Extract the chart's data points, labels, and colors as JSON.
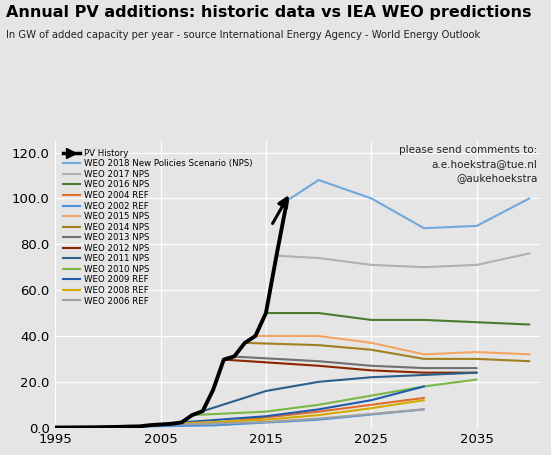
{
  "title": "Annual PV additions: historic data vs IEA WEO predictions",
  "subtitle": "In GW of added capacity per year - source International Energy Agency - World Energy Outlook",
  "comment": "please send comments to:\na.e.hoekstra@tue.nl\n@aukehoekstra",
  "xlim": [
    1995,
    2041
  ],
  "ylim": [
    0,
    125
  ],
  "yticks": [
    0.0,
    20.0,
    40.0,
    60.0,
    80.0,
    100.0,
    120.0
  ],
  "xticks": [
    1995,
    2005,
    2015,
    2025,
    2035
  ],
  "background_color": "#e5e5e5",
  "series": {
    "PV History": {
      "color": "#000000",
      "linewidth": 2.8,
      "years": [
        1995,
        1996,
        1997,
        1998,
        1999,
        2000,
        2001,
        2002,
        2003,
        2004,
        2005,
        2006,
        2007,
        2008,
        2009,
        2010,
        2011,
        2012,
        2013,
        2014,
        2015,
        2016,
        2017
      ],
      "values": [
        0.08,
        0.09,
        0.13,
        0.16,
        0.2,
        0.28,
        0.34,
        0.5,
        0.57,
        1.1,
        1.4,
        1.7,
        2.3,
        5.5,
        7.2,
        16.6,
        29.7,
        31.1,
        37.0,
        40.0,
        50.0,
        75.0,
        99.0
      ]
    },
    "WEO 2018 New Policies Scenario (NPS)": {
      "color": "#6fa8dc",
      "linewidth": 1.5,
      "years": [
        2017,
        2020,
        2025,
        2030,
        2035,
        2040
      ],
      "values": [
        99.0,
        108.0,
        100.0,
        87.0,
        88.0,
        100.0
      ]
    },
    "WEO 2017 NPS": {
      "color": "#b0b0b0",
      "linewidth": 1.5,
      "years": [
        2016,
        2020,
        2025,
        2030,
        2035,
        2040
      ],
      "values": [
        75.0,
        74.0,
        71.0,
        70.0,
        71.0,
        76.0
      ]
    },
    "WEO 2016 NPS": {
      "color": "#4a7c2f",
      "linewidth": 1.5,
      "years": [
        2015,
        2020,
        2025,
        2030,
        2035,
        2040
      ],
      "values": [
        50.0,
        50.0,
        47.0,
        47.0,
        46.0,
        45.0
      ]
    },
    "WEO 2004 REF": {
      "color": "#e06c2a",
      "linewidth": 1.5,
      "years": [
        2002,
        2010,
        2020,
        2030
      ],
      "values": [
        0.6,
        2.0,
        7.0,
        13.0
      ]
    },
    "WEO 2002 REF": {
      "color": "#4a90d9",
      "linewidth": 1.5,
      "years": [
        2000,
        2010,
        2020,
        2030
      ],
      "values": [
        0.3,
        1.0,
        3.5,
        8.0
      ]
    },
    "WEO 2015 NPS": {
      "color": "#f4a460",
      "linewidth": 1.5,
      "years": [
        2014,
        2020,
        2025,
        2030,
        2035,
        2040
      ],
      "values": [
        40.0,
        40.0,
        37.0,
        32.0,
        33.0,
        32.0
      ]
    },
    "WEO 2014 NPS": {
      "color": "#a08020",
      "linewidth": 1.5,
      "years": [
        2013,
        2020,
        2025,
        2030,
        2035,
        2040
      ],
      "values": [
        37.0,
        36.0,
        34.0,
        30.0,
        30.0,
        29.0
      ]
    },
    "WEO 2013 NPS": {
      "color": "#707070",
      "linewidth": 1.5,
      "years": [
        2012,
        2020,
        2025,
        2030,
        2035
      ],
      "values": [
        31.0,
        29.0,
        27.0,
        26.0,
        26.0
      ]
    },
    "WEO 2012 NPS": {
      "color": "#8b2500",
      "linewidth": 1.5,
      "years": [
        2011,
        2020,
        2025,
        2030,
        2035
      ],
      "values": [
        29.7,
        27.0,
        25.0,
        24.0,
        24.0
      ]
    },
    "WEO 2011 NPS": {
      "color": "#2c5f8a",
      "linewidth": 1.5,
      "years": [
        2009,
        2015,
        2020,
        2025,
        2030,
        2035
      ],
      "values": [
        7.2,
        16.0,
        20.0,
        22.0,
        23.0,
        24.0
      ]
    },
    "WEO 2010 NPS": {
      "color": "#7ab648",
      "linewidth": 1.5,
      "years": [
        2008,
        2015,
        2020,
        2025,
        2030,
        2035
      ],
      "values": [
        5.5,
        7.0,
        10.0,
        14.0,
        18.0,
        21.0
      ]
    },
    "WEO 2009 REF": {
      "color": "#1f5baa",
      "linewidth": 1.5,
      "years": [
        2007,
        2015,
        2020,
        2025,
        2030
      ],
      "values": [
        2.3,
        5.0,
        8.0,
        12.0,
        18.0
      ]
    },
    "WEO 2008 REF": {
      "color": "#d4aa00",
      "linewidth": 1.5,
      "years": [
        2006,
        2015,
        2020,
        2025,
        2030
      ],
      "values": [
        1.7,
        3.5,
        5.5,
        8.5,
        12.0
      ]
    },
    "WEO 2006 REF": {
      "color": "#a0a0a0",
      "linewidth": 1.5,
      "years": [
        2004,
        2015,
        2020,
        2025,
        2030
      ],
      "values": [
        1.1,
        2.5,
        4.0,
        6.0,
        8.0
      ]
    }
  },
  "legend_order": [
    "PV History",
    "WEO 2018 New Policies Scenario (NPS)",
    "WEO 2017 NPS",
    "WEO 2016 NPS",
    "WEO 2004 REF",
    "WEO 2002 REF",
    "WEO 2015 NPS",
    "WEO 2014 NPS",
    "WEO 2013 NPS",
    "WEO 2012 NPS",
    "WEO 2011 NPS",
    "WEO 2010 NPS",
    "WEO 2009 REF",
    "WEO 2008 REF",
    "WEO 2006 REF"
  ]
}
